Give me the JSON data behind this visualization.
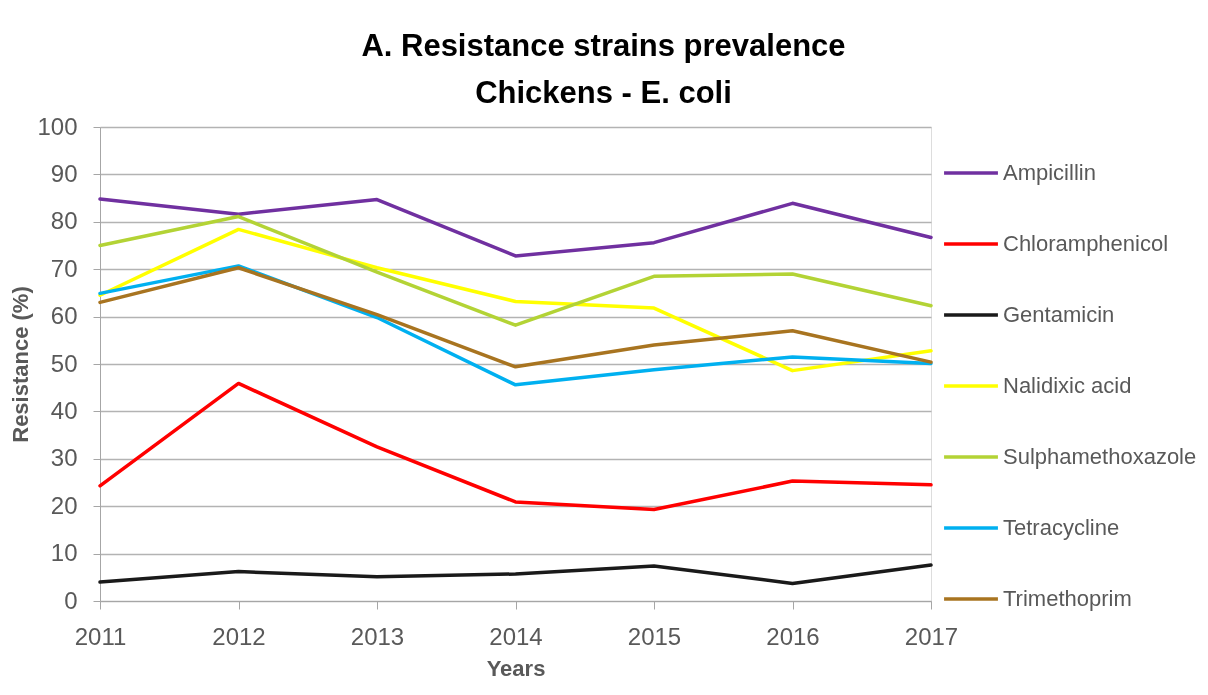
{
  "chart_data": {
    "type": "line",
    "title": "A. Resistance strains prevalence",
    "subtitle": "Chickens - E. coli",
    "xlabel": "Years",
    "ylabel": "Resistance (%)",
    "x": [
      2011,
      2012,
      2013,
      2014,
      2015,
      2016,
      2017
    ],
    "xlim": [
      2011,
      2017
    ],
    "xticks": [
      2011,
      2012,
      2013,
      2014,
      2015,
      2016,
      2017
    ],
    "ylim": [
      0,
      100
    ],
    "yticks": [
      0,
      10,
      20,
      30,
      40,
      50,
      60,
      70,
      80,
      90,
      100
    ],
    "grid": "y",
    "legend": "right",
    "series": [
      {
        "name": "Ampicillin",
        "color": "#7030a0",
        "values": [
          84.8,
          81.6,
          84.7,
          72.8,
          75.6,
          83.9,
          76.7
        ]
      },
      {
        "name": "Chloramphenicol",
        "color": "#ff0000",
        "values": [
          24.3,
          45.9,
          32.5,
          20.9,
          19.3,
          25.3,
          24.5
        ]
      },
      {
        "name": "Gentamicin",
        "color": "#1a1a1a",
        "values": [
          4.0,
          6.2,
          5.1,
          5.7,
          7.4,
          3.7,
          7.6
        ]
      },
      {
        "name": "Nalidixic acid",
        "color": "#ffff00",
        "values": [
          64.5,
          78.4,
          70.3,
          63.2,
          61.8,
          48.6,
          52.8
        ]
      },
      {
        "name": "Sulphamethoxazole",
        "color": "#b3d335",
        "values": [
          75.0,
          81.1,
          69.4,
          58.2,
          68.5,
          69.0,
          62.3
        ]
      },
      {
        "name": "Tetracycline",
        "color": "#00b0f0",
        "values": [
          64.9,
          70.7,
          59.8,
          45.6,
          48.8,
          51.5,
          50.1
        ]
      },
      {
        "name": "Trimethoprim",
        "color": "#a87420",
        "values": [
          63.0,
          70.3,
          60.4,
          49.4,
          54.0,
          57.0,
          50.4
        ]
      }
    ]
  }
}
